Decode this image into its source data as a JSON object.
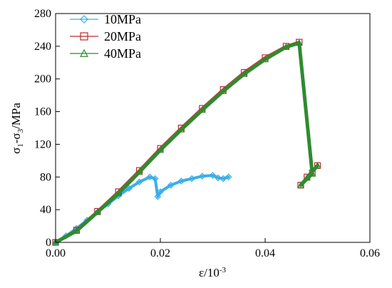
{
  "chart_data": {
    "type": "scatter",
    "xlabel": "ε/10",
    "xlabel_sup": "-3",
    "ylabel_parts": [
      "σ",
      "1",
      "-σ",
      "3",
      "/MPa"
    ],
    "xlim": [
      0,
      0.06
    ],
    "ylim": [
      0,
      280
    ],
    "x_ticks": [
      "0.00",
      "0.02",
      "0.04",
      "0.06"
    ],
    "y_ticks": [
      "0",
      "40",
      "80",
      "120",
      "160",
      "200",
      "240",
      "280"
    ],
    "grid": false,
    "legend_position": "top-left",
    "series": [
      {
        "name": "10MPa",
        "color": "#3aaee8",
        "marker": "diamond",
        "x": [
          0.0,
          0.002,
          0.004,
          0.006,
          0.008,
          0.01,
          0.012,
          0.014,
          0.016,
          0.018,
          0.019,
          0.0195,
          0.02,
          0.022,
          0.024,
          0.026,
          0.028,
          0.03,
          0.031,
          0.032,
          0.033
        ],
        "y": [
          0,
          8,
          17,
          27,
          37,
          47,
          57,
          66,
          74,
          80,
          78,
          56,
          62,
          70,
          75,
          78,
          81,
          82,
          79,
          78,
          80
        ]
      },
      {
        "name": "20MPa",
        "color": "#c0282d",
        "marker": "square",
        "x": [
          0.0,
          0.004,
          0.008,
          0.012,
          0.016,
          0.02,
          0.024,
          0.028,
          0.032,
          0.036,
          0.04,
          0.044,
          0.0465,
          0.049,
          0.0468,
          0.048,
          0.05
        ],
        "y": [
          0,
          15,
          38,
          62,
          88,
          115,
          140,
          164,
          187,
          208,
          226,
          240,
          245,
          85,
          70,
          80,
          94
        ]
      },
      {
        "name": "40MPa",
        "color": "#2e8b2e",
        "marker": "triangle",
        "x": [
          0.0,
          0.004,
          0.008,
          0.012,
          0.016,
          0.02,
          0.024,
          0.028,
          0.032,
          0.036,
          0.04,
          0.044,
          0.0465,
          0.049,
          0.0468,
          0.048,
          0.05
        ],
        "y": [
          0,
          14,
          37,
          60,
          86,
          113,
          138,
          162,
          185,
          206,
          224,
          239,
          244,
          84,
          70,
          79,
          94
        ]
      }
    ]
  }
}
